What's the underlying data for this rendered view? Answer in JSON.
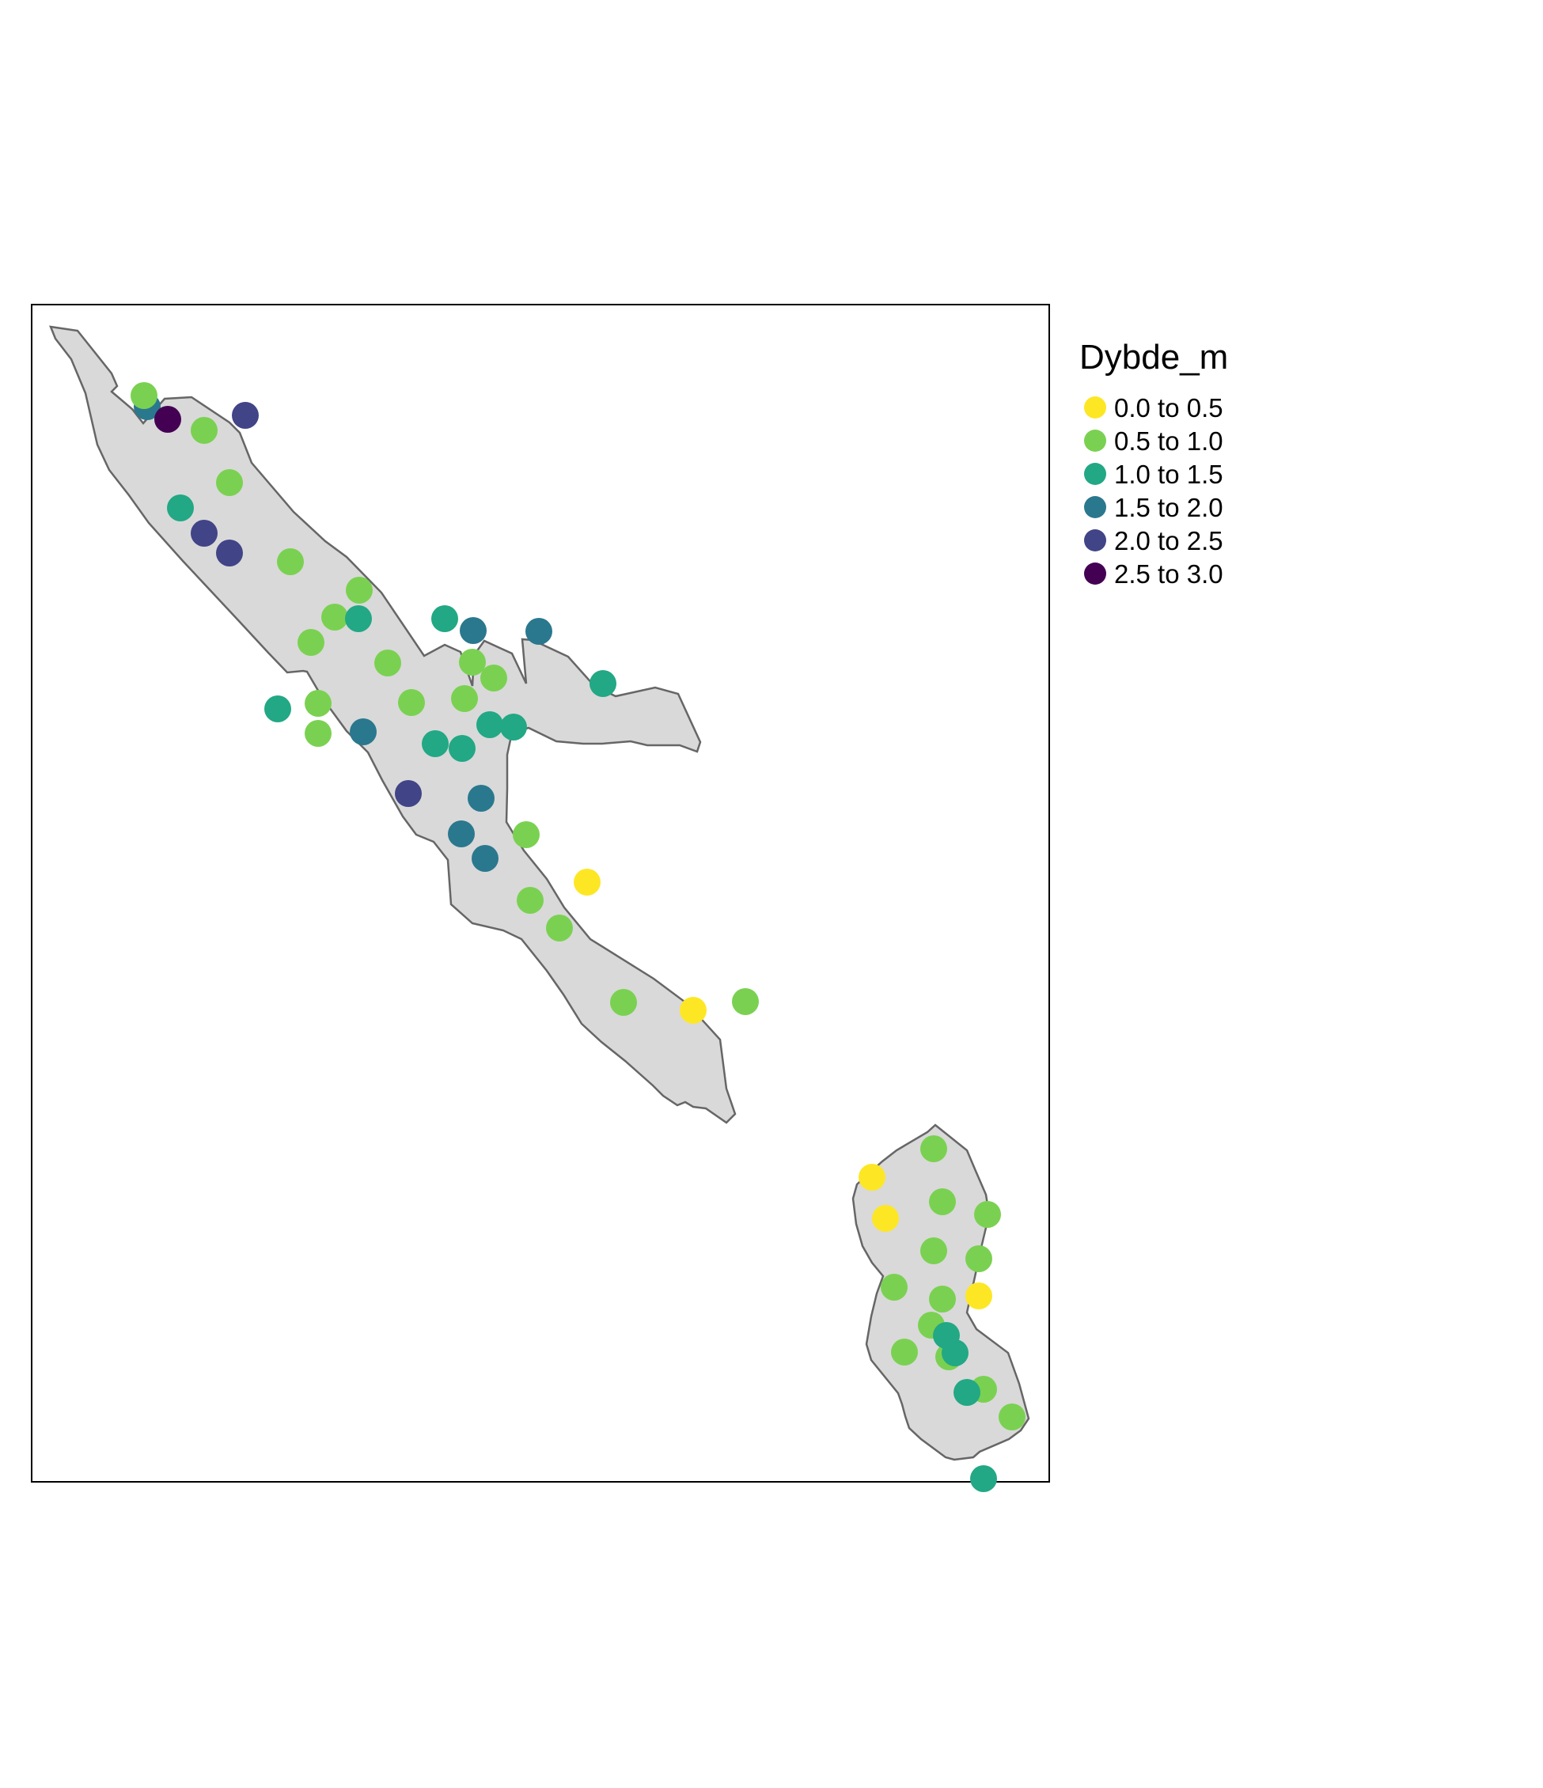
{
  "legend": {
    "title": "Dybde_m",
    "classes": [
      {
        "label": "0.0 to 0.5",
        "color": "#fde725"
      },
      {
        "label": "0.5 to 1.0",
        "color": "#7ad151"
      },
      {
        "label": "1.0 to 1.5",
        "color": "#22a884"
      },
      {
        "label": "1.5 to 2.0",
        "color": "#2a788e"
      },
      {
        "label": "2.0 to 2.5",
        "color": "#414487"
      },
      {
        "label": "2.5 to 3.0",
        "color": "#440154"
      }
    ]
  },
  "style": {
    "lake_fill": "#d9d9d9",
    "lake_outline": "#666666",
    "frame_color": "#000000"
  },
  "points": [
    {
      "depth_class": 3
    },
    {
      "depth_class": 1
    },
    {
      "depth_class": 5
    },
    {
      "depth_class": 4
    },
    {
      "depth_class": 1
    },
    {
      "depth_class": 1
    },
    {
      "depth_class": 2
    },
    {
      "depth_class": 4
    },
    {
      "depth_class": 4
    },
    {
      "depth_class": 1
    },
    {
      "depth_class": 1
    },
    {
      "depth_class": 1
    },
    {
      "depth_class": 2
    },
    {
      "depth_class": 1
    },
    {
      "depth_class": 2
    },
    {
      "depth_class": 3
    },
    {
      "depth_class": 1
    },
    {
      "depth_class": 1
    },
    {
      "depth_class": 3
    },
    {
      "depth_class": 1
    },
    {
      "depth_class": 1
    },
    {
      "depth_class": 1
    },
    {
      "depth_class": 1
    },
    {
      "depth_class": 2
    },
    {
      "depth_class": 2
    },
    {
      "depth_class": 1
    },
    {
      "depth_class": 3
    },
    {
      "depth_class": 2
    },
    {
      "depth_class": 2
    },
    {
      "depth_class": 2
    },
    {
      "depth_class": 2
    },
    {
      "depth_class": 4
    },
    {
      "depth_class": 3
    },
    {
      "depth_class": 3
    },
    {
      "depth_class": 3
    },
    {
      "depth_class": 1
    },
    {
      "depth_class": 0
    },
    {
      "depth_class": 1
    },
    {
      "depth_class": 1
    },
    {
      "depth_class": 1
    },
    {
      "depth_class": 0
    },
    {
      "depth_class": 1
    },
    {
      "depth_class": 1
    },
    {
      "depth_class": 0
    },
    {
      "depth_class": 0
    },
    {
      "depth_class": 1
    },
    {
      "depth_class": 1
    },
    {
      "depth_class": 1
    },
    {
      "depth_class": 1
    },
    {
      "depth_class": 1
    },
    {
      "depth_class": 0
    },
    {
      "depth_class": 1
    },
    {
      "depth_class": 1
    },
    {
      "depth_class": 1
    },
    {
      "depth_class": 1
    },
    {
      "depth_class": 2
    },
    {
      "depth_class": 2
    },
    {
      "depth_class": 1
    },
    {
      "depth_class": 2
    },
    {
      "depth_class": 1
    },
    {
      "depth_class": 2
    }
  ]
}
